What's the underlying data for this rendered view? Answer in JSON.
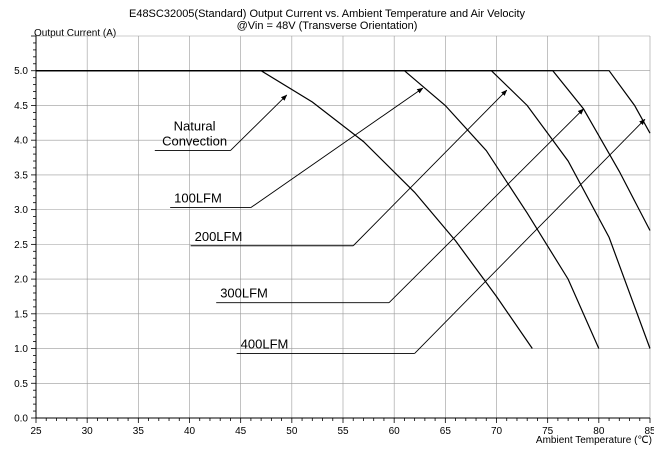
{
  "chart_data": {
    "type": "line",
    "title": "E48SC32005(Standard)  Output Current vs. Ambient Temperature and Air Velocity",
    "subtitle": "@Vin = 48V (Transverse Orientation)",
    "xlabel": "Ambient Temperature (℃)",
    "ylabel": "Output Current (A)",
    "xlim": [
      25,
      85
    ],
    "ylim": [
      0,
      5.5
    ],
    "xticks": [
      25,
      30,
      35,
      40,
      45,
      50,
      55,
      60,
      65,
      70,
      75,
      80,
      85
    ],
    "yticks": [
      0.0,
      0.5,
      1.0,
      1.5,
      2.0,
      2.5,
      3.0,
      3.5,
      4.0,
      4.5,
      5.0
    ],
    "ytick_labels": [
      "0.0",
      "0.5",
      "1.0",
      "1.5",
      "2.0",
      "2.5",
      "3.0",
      "3.5",
      "4.0",
      "4.5",
      "5.0"
    ],
    "grid": true,
    "legend": "none",
    "series": [
      {
        "name": "Natural Convection",
        "x": [
          25,
          47,
          52,
          57,
          62,
          66,
          70,
          73.5
        ],
        "y": [
          5.0,
          5.0,
          4.55,
          3.98,
          3.25,
          2.55,
          1.75,
          1.0
        ]
      },
      {
        "name": "100LFM",
        "x": [
          25,
          61,
          65,
          69,
          73,
          77,
          80
        ],
        "y": [
          5.0,
          5.0,
          4.5,
          3.85,
          2.95,
          2.0,
          1.0
        ]
      },
      {
        "name": "200LFM",
        "x": [
          25,
          69.5,
          73,
          77,
          81,
          85
        ],
        "y": [
          5.0,
          5.0,
          4.5,
          3.7,
          2.6,
          1.0
        ]
      },
      {
        "name": "300LFM",
        "x": [
          25,
          75.5,
          78.5,
          82,
          85
        ],
        "y": [
          5.0,
          5.0,
          4.45,
          3.55,
          2.7
        ]
      },
      {
        "name": "400LFM",
        "x": [
          25,
          81,
          83.5,
          85
        ],
        "y": [
          5.0,
          5.0,
          4.5,
          4.1
        ]
      }
    ],
    "annotations": [
      {
        "text": "Natural",
        "line2": "Convection",
        "label_x": 37,
        "label_y": 3.9,
        "arrow_from": [
          44,
          3.85
        ],
        "arrow_to": [
          49.5,
          4.65
        ]
      },
      {
        "text": "100LFM",
        "label_x": 38.5,
        "label_y": 3.03,
        "arrow_from": [
          46,
          3.03
        ],
        "arrow_to": [
          62.8,
          4.75
        ]
      },
      {
        "text": "200LFM",
        "label_x": 40.5,
        "label_y": 2.48,
        "arrow_from": [
          56,
          2.48
        ],
        "arrow_to": [
          71,
          4.72
        ]
      },
      {
        "text": "300LFM",
        "label_x": 43,
        "label_y": 1.66,
        "arrow_from": [
          59.5,
          1.66
        ],
        "arrow_to": [
          78.5,
          4.45
        ]
      },
      {
        "text": "400LFM",
        "label_x": 45,
        "label_y": 0.93,
        "arrow_from": [
          62,
          0.93
        ],
        "arrow_to": [
          84.5,
          4.3
        ]
      }
    ],
    "colors": {
      "line": "#000000",
      "grid": "#9a9a9a"
    }
  }
}
